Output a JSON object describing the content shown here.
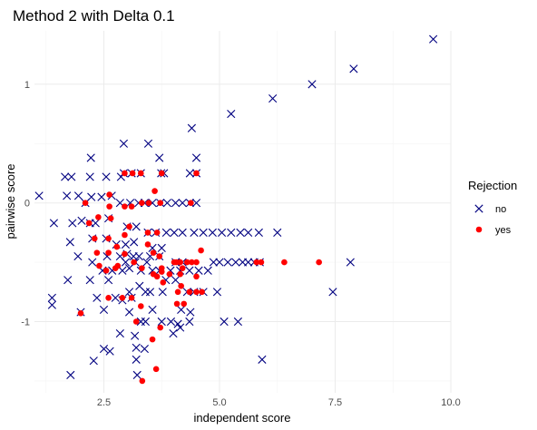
{
  "chart_data": {
    "type": "scatter",
    "title": "Method 2 with Delta 0.1",
    "xlabel": "independent score",
    "ylabel": "pairwise score",
    "xlim": [
      1.0,
      10.0
    ],
    "ylim": [
      -1.6,
      1.45
    ],
    "x_ticks": [
      2.5,
      5.0,
      7.5,
      10.0
    ],
    "x_tick_labels": [
      "2.5",
      "5.0",
      "7.5",
      "10.0"
    ],
    "y_ticks": [
      -1,
      0,
      1
    ],
    "y_tick_labels": [
      "-1",
      "0",
      "1"
    ],
    "grid": true,
    "legend": {
      "title": "Rejection",
      "position": "right"
    },
    "series": [
      {
        "name": "no",
        "marker": "cross",
        "color": "#000080",
        "points": [
          [
            9.62,
            1.38
          ],
          [
            7.9,
            1.13
          ],
          [
            7.0,
            1.0
          ],
          [
            6.15,
            0.88
          ],
          [
            5.25,
            0.75
          ],
          [
            4.4,
            0.63
          ],
          [
            2.93,
            0.5
          ],
          [
            3.46,
            0.5
          ],
          [
            2.22,
            0.38
          ],
          [
            3.7,
            0.38
          ],
          [
            4.5,
            0.38
          ],
          [
            1.66,
            0.22
          ],
          [
            1.8,
            0.22
          ],
          [
            2.2,
            0.22
          ],
          [
            2.55,
            0.22
          ],
          [
            2.87,
            0.22
          ],
          [
            2.93,
            0.25
          ],
          [
            3.1,
            0.25
          ],
          [
            3.3,
            0.25
          ],
          [
            3.74,
            0.25
          ],
          [
            3.8,
            0.25
          ],
          [
            4.36,
            0.25
          ],
          [
            4.5,
            0.25
          ],
          [
            1.1,
            0.06
          ],
          [
            1.7,
            0.06
          ],
          [
            1.95,
            0.06
          ],
          [
            2.1,
            0.0
          ],
          [
            2.23,
            0.05
          ],
          [
            2.45,
            0.05
          ],
          [
            2.67,
            0.06
          ],
          [
            2.85,
            0.0
          ],
          [
            3.07,
            0.0
          ],
          [
            3.25,
            0.0
          ],
          [
            3.38,
            0.0
          ],
          [
            3.55,
            0.0
          ],
          [
            3.72,
            0.0
          ],
          [
            3.87,
            0.0
          ],
          [
            4.05,
            0.0
          ],
          [
            4.2,
            0.0
          ],
          [
            4.36,
            0.0
          ],
          [
            4.5,
            0.0
          ],
          [
            1.42,
            -0.17
          ],
          [
            1.82,
            -0.17
          ],
          [
            2.02,
            -0.15
          ],
          [
            2.2,
            -0.17
          ],
          [
            2.32,
            -0.17
          ],
          [
            2.6,
            -0.13
          ],
          [
            3.0,
            -0.2
          ],
          [
            3.2,
            -0.2
          ],
          [
            3.45,
            -0.25
          ],
          [
            3.62,
            -0.25
          ],
          [
            3.85,
            -0.25
          ],
          [
            4.02,
            -0.25
          ],
          [
            4.2,
            -0.25
          ],
          [
            4.45,
            -0.25
          ],
          [
            4.65,
            -0.25
          ],
          [
            4.85,
            -0.25
          ],
          [
            5.05,
            -0.25
          ],
          [
            5.25,
            -0.25
          ],
          [
            5.45,
            -0.25
          ],
          [
            5.62,
            -0.25
          ],
          [
            5.85,
            -0.25
          ],
          [
            6.25,
            -0.25
          ],
          [
            1.77,
            -0.33
          ],
          [
            2.25,
            -0.3
          ],
          [
            2.55,
            -0.3
          ],
          [
            2.77,
            -0.35
          ],
          [
            2.97,
            -0.35
          ],
          [
            3.15,
            -0.33
          ],
          [
            3.55,
            -0.38
          ],
          [
            3.75,
            -0.38
          ],
          [
            1.94,
            -0.45
          ],
          [
            2.57,
            -0.45
          ],
          [
            2.85,
            -0.45
          ],
          [
            3.0,
            -0.43
          ],
          [
            3.14,
            -0.45
          ],
          [
            3.26,
            -0.45
          ],
          [
            3.5,
            -0.45
          ],
          [
            3.7,
            -0.45
          ],
          [
            2.25,
            -0.5
          ],
          [
            2.97,
            -0.5
          ],
          [
            3.18,
            -0.5
          ],
          [
            3.43,
            -0.5
          ],
          [
            4.05,
            -0.5
          ],
          [
            4.2,
            -0.5
          ],
          [
            4.87,
            -0.5
          ],
          [
            5.0,
            -0.5
          ],
          [
            5.18,
            -0.5
          ],
          [
            5.35,
            -0.5
          ],
          [
            5.5,
            -0.5
          ],
          [
            5.62,
            -0.5
          ],
          [
            5.75,
            -0.5
          ],
          [
            5.87,
            -0.5
          ],
          [
            7.83,
            -0.5
          ],
          [
            2.47,
            -0.57
          ],
          [
            2.68,
            -0.57
          ],
          [
            2.9,
            -0.57
          ],
          [
            3.05,
            -0.55
          ],
          [
            3.3,
            -0.57
          ],
          [
            3.55,
            -0.57
          ],
          [
            3.7,
            -0.57
          ],
          [
            3.94,
            -0.57
          ],
          [
            4.15,
            -0.57
          ],
          [
            4.35,
            -0.57
          ],
          [
            4.55,
            -0.57
          ],
          [
            4.75,
            -0.57
          ],
          [
            1.72,
            -0.65
          ],
          [
            2.2,
            -0.65
          ],
          [
            2.6,
            -0.65
          ],
          [
            3.27,
            -0.7
          ],
          [
            3.84,
            -0.65
          ],
          [
            4.05,
            -0.65
          ],
          [
            3.05,
            -0.75
          ],
          [
            3.4,
            -0.75
          ],
          [
            3.5,
            -0.75
          ],
          [
            3.77,
            -0.75
          ],
          [
            4.3,
            -0.75
          ],
          [
            4.45,
            -0.75
          ],
          [
            4.65,
            -0.75
          ],
          [
            4.95,
            -0.75
          ],
          [
            7.45,
            -0.75
          ],
          [
            1.38,
            -0.8
          ],
          [
            1.38,
            -0.86
          ],
          [
            2.35,
            -0.8
          ],
          [
            2.75,
            -0.8
          ],
          [
            2.9,
            -0.82
          ],
          [
            3.1,
            -0.8
          ],
          [
            2.0,
            -0.92
          ],
          [
            2.5,
            -0.9
          ],
          [
            3.05,
            -0.92
          ],
          [
            3.55,
            -0.9
          ],
          [
            4.17,
            -0.9
          ],
          [
            4.37,
            -0.92
          ],
          [
            3.3,
            -1.0
          ],
          [
            3.4,
            -1.0
          ],
          [
            3.75,
            -1.0
          ],
          [
            3.95,
            -1.0
          ],
          [
            4.1,
            -1.02
          ],
          [
            4.35,
            -1.0
          ],
          [
            5.1,
            -1.0
          ],
          [
            5.4,
            -1.0
          ],
          [
            4.0,
            -1.1
          ],
          [
            4.15,
            -1.05
          ],
          [
            3.17,
            -1.12
          ],
          [
            2.5,
            -1.23
          ],
          [
            2.63,
            -1.25
          ],
          [
            2.85,
            -1.1
          ],
          [
            3.2,
            -1.22
          ],
          [
            3.38,
            -1.23
          ],
          [
            2.28,
            -1.33
          ],
          [
            3.2,
            -1.32
          ],
          [
            5.92,
            -1.32
          ],
          [
            1.78,
            -1.45
          ],
          [
            3.22,
            -1.45
          ]
        ]
      },
      {
        "name": "yes",
        "marker": "dot",
        "color": "#ff0000",
        "points": [
          [
            2.95,
            0.25
          ],
          [
            3.12,
            0.25
          ],
          [
            3.3,
            0.25
          ],
          [
            3.75,
            0.25
          ],
          [
            4.5,
            0.25
          ],
          [
            2.62,
            0.07
          ],
          [
            3.6,
            0.1
          ],
          [
            2.1,
            0.0
          ],
          [
            2.62,
            -0.03
          ],
          [
            2.95,
            -0.03
          ],
          [
            3.1,
            -0.03
          ],
          [
            3.32,
            0.0
          ],
          [
            3.47,
            0.0
          ],
          [
            3.72,
            0.0
          ],
          [
            4.38,
            0.0
          ],
          [
            2.18,
            -0.17
          ],
          [
            2.38,
            -0.12
          ],
          [
            2.65,
            -0.13
          ],
          [
            3.05,
            -0.2
          ],
          [
            3.45,
            -0.25
          ],
          [
            3.65,
            -0.25
          ],
          [
            2.95,
            -0.27
          ],
          [
            2.3,
            -0.3
          ],
          [
            2.6,
            -0.3
          ],
          [
            2.78,
            -0.37
          ],
          [
            2.35,
            -0.42
          ],
          [
            2.6,
            -0.42
          ],
          [
            2.95,
            -0.43
          ],
          [
            3.45,
            -0.35
          ],
          [
            3.57,
            -0.42
          ],
          [
            3.7,
            -0.45
          ],
          [
            4.6,
            -0.4
          ],
          [
            2.4,
            -0.53
          ],
          [
            2.8,
            -0.53
          ],
          [
            3.15,
            -0.5
          ],
          [
            3.32,
            -0.55
          ],
          [
            3.75,
            -0.55
          ],
          [
            4.02,
            -0.5
          ],
          [
            4.07,
            -0.5
          ],
          [
            4.15,
            -0.5
          ],
          [
            4.2,
            -0.55
          ],
          [
            4.3,
            -0.5
          ],
          [
            4.4,
            -0.5
          ],
          [
            4.5,
            -0.5
          ],
          [
            5.8,
            -0.5
          ],
          [
            5.9,
            -0.5
          ],
          [
            6.4,
            -0.5
          ],
          [
            7.15,
            -0.5
          ],
          [
            2.55,
            -0.57
          ],
          [
            2.75,
            -0.55
          ],
          [
            3.57,
            -0.6
          ],
          [
            3.65,
            -0.62
          ],
          [
            3.75,
            -0.58
          ],
          [
            3.92,
            -0.6
          ],
          [
            4.15,
            -0.6
          ],
          [
            4.5,
            -0.62
          ],
          [
            3.78,
            -0.67
          ],
          [
            4.17,
            -0.7
          ],
          [
            4.1,
            -0.75
          ],
          [
            4.35,
            -0.75
          ],
          [
            4.5,
            -0.75
          ],
          [
            4.62,
            -0.75
          ],
          [
            2.6,
            -0.8
          ],
          [
            2.9,
            -0.8
          ],
          [
            3.1,
            -0.8
          ],
          [
            3.3,
            -0.87
          ],
          [
            4.08,
            -0.85
          ],
          [
            4.23,
            -0.85
          ],
          [
            2.0,
            -0.93
          ],
          [
            3.2,
            -1.0
          ],
          [
            3.72,
            -1.05
          ],
          [
            3.55,
            -1.15
          ],
          [
            3.63,
            -1.4
          ],
          [
            3.33,
            -1.5
          ]
        ]
      }
    ]
  }
}
